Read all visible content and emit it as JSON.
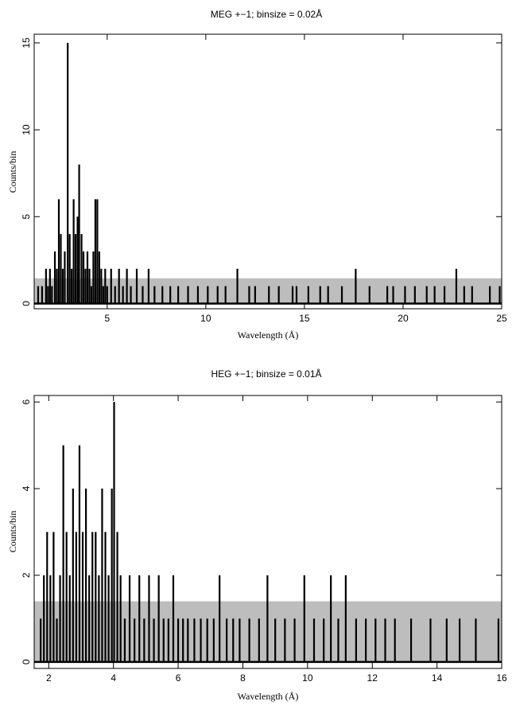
{
  "chart_data": [
    {
      "type": "line",
      "title": "MEG +−1; binsize = 0.02Å",
      "xlabel": "Wavelength (Å)",
      "ylabel": "Counts/bin",
      "xlim": [
        1.3,
        25
      ],
      "ylim": [
        -0.3,
        15.5
      ],
      "xticks": [
        5,
        10,
        15,
        20,
        25
      ],
      "xtick_labels": [
        "5",
        "10",
        "15",
        "20",
        "25"
      ],
      "yticks": [
        0,
        5,
        10,
        15
      ],
      "ytick_labels": [
        "0",
        "5",
        "10",
        "15"
      ],
      "grid": false,
      "series": [
        {
          "kind": "error_band",
          "color": "#bdbdbd",
          "points": [
            [
              1.3,
              1.45
            ],
            [
              7.6,
              1.45
            ],
            [
              7.6,
              1.45
            ],
            [
              25,
              1.45
            ]
          ]
        },
        {
          "kind": "spikes",
          "color": "#000000",
          "points": [
            [
              1.5,
              1
            ],
            [
              1.7,
              1
            ],
            [
              1.9,
              2
            ],
            [
              2.0,
              1
            ],
            [
              2.1,
              2
            ],
            [
              2.2,
              1
            ],
            [
              2.35,
              3
            ],
            [
              2.45,
              2
            ],
            [
              2.55,
              6
            ],
            [
              2.65,
              4
            ],
            [
              2.75,
              2
            ],
            [
              2.85,
              3
            ],
            [
              3.0,
              15
            ],
            [
              3.1,
              4
            ],
            [
              3.2,
              2
            ],
            [
              3.3,
              6
            ],
            [
              3.4,
              4
            ],
            [
              3.5,
              5
            ],
            [
              3.58,
              8
            ],
            [
              3.7,
              4
            ],
            [
              3.8,
              3
            ],
            [
              3.9,
              2
            ],
            [
              4.0,
              3
            ],
            [
              4.1,
              2
            ],
            [
              4.2,
              1
            ],
            [
              4.3,
              3
            ],
            [
              4.4,
              6
            ],
            [
              4.5,
              6
            ],
            [
              4.6,
              3
            ],
            [
              4.7,
              2
            ],
            [
              4.8,
              1
            ],
            [
              4.9,
              2
            ],
            [
              5.0,
              1
            ],
            [
              5.2,
              2
            ],
            [
              5.4,
              1
            ],
            [
              5.6,
              2
            ],
            [
              5.8,
              1
            ],
            [
              6.0,
              2
            ],
            [
              6.2,
              1
            ],
            [
              6.5,
              2
            ],
            [
              6.8,
              1
            ],
            [
              7.1,
              2
            ],
            [
              7.4,
              1
            ],
            [
              7.8,
              1
            ],
            [
              8.2,
              1
            ],
            [
              8.6,
              1
            ],
            [
              9.1,
              1
            ],
            [
              9.6,
              1
            ],
            [
              10.1,
              1
            ],
            [
              10.6,
              1
            ],
            [
              11.0,
              1
            ],
            [
              11.6,
              2
            ],
            [
              12.2,
              1
            ],
            [
              12.5,
              1
            ],
            [
              13.2,
              1
            ],
            [
              13.7,
              1
            ],
            [
              14.4,
              1
            ],
            [
              14.6,
              1
            ],
            [
              15.2,
              1
            ],
            [
              15.8,
              1
            ],
            [
              16.2,
              1
            ],
            [
              16.9,
              1
            ],
            [
              17.6,
              2
            ],
            [
              18.3,
              1
            ],
            [
              19.2,
              1
            ],
            [
              19.5,
              1
            ],
            [
              20.1,
              1
            ],
            [
              20.6,
              1
            ],
            [
              21.2,
              1
            ],
            [
              21.6,
              1
            ],
            [
              22.1,
              1
            ],
            [
              22.7,
              2
            ],
            [
              23.1,
              1
            ],
            [
              23.5,
              1
            ],
            [
              24.4,
              1
            ],
            [
              24.9,
              1
            ]
          ]
        }
      ]
    },
    {
      "type": "line",
      "title": "HEG +−1; binsize = 0.01Å",
      "xlabel": "Wavelength (Å)",
      "ylabel": "Counts/bin",
      "xlim": [
        1.55,
        16
      ],
      "ylim": [
        -0.15,
        6.15
      ],
      "xticks": [
        2,
        4,
        6,
        8,
        10,
        12,
        14,
        16
      ],
      "xtick_labels": [
        "2",
        "4",
        "6",
        "8",
        "10",
        "12",
        "14",
        "16"
      ],
      "yticks": [
        0,
        2,
        4,
        6
      ],
      "ytick_labels": [
        "0",
        "2",
        "4",
        "6"
      ],
      "grid": false,
      "series": [
        {
          "kind": "error_band",
          "color": "#bdbdbd",
          "points": [
            [
              1.55,
              1.4
            ],
            [
              16,
              1.4
            ]
          ]
        },
        {
          "kind": "spikes",
          "color": "#000000",
          "points": [
            [
              1.75,
              1
            ],
            [
              1.85,
              2
            ],
            [
              1.95,
              3
            ],
            [
              2.05,
              2
            ],
            [
              2.15,
              3
            ],
            [
              2.25,
              1
            ],
            [
              2.35,
              2
            ],
            [
              2.45,
              5
            ],
            [
              2.55,
              3
            ],
            [
              2.65,
              2
            ],
            [
              2.75,
              4
            ],
            [
              2.85,
              3
            ],
            [
              2.95,
              5
            ],
            [
              3.05,
              3
            ],
            [
              3.15,
              4
            ],
            [
              3.25,
              2
            ],
            [
              3.35,
              3
            ],
            [
              3.45,
              3
            ],
            [
              3.55,
              2
            ],
            [
              3.65,
              4
            ],
            [
              3.75,
              3
            ],
            [
              3.85,
              2
            ],
            [
              3.95,
              4
            ],
            [
              4.02,
              6
            ],
            [
              4.12,
              3
            ],
            [
              4.22,
              2
            ],
            [
              4.35,
              1
            ],
            [
              4.5,
              2
            ],
            [
              4.65,
              1
            ],
            [
              4.8,
              2
            ],
            [
              4.95,
              1
            ],
            [
              5.1,
              2
            ],
            [
              5.25,
              1
            ],
            [
              5.4,
              2
            ],
            [
              5.55,
              1
            ],
            [
              5.7,
              1
            ],
            [
              5.85,
              2
            ],
            [
              6.0,
              1
            ],
            [
              6.15,
              1
            ],
            [
              6.3,
              1
            ],
            [
              6.5,
              1
            ],
            [
              6.7,
              1
            ],
            [
              6.9,
              1
            ],
            [
              7.1,
              1
            ],
            [
              7.28,
              2
            ],
            [
              7.5,
              1
            ],
            [
              7.7,
              1
            ],
            [
              7.9,
              1
            ],
            [
              8.2,
              1
            ],
            [
              8.5,
              1
            ],
            [
              8.76,
              2
            ],
            [
              9.0,
              1
            ],
            [
              9.3,
              1
            ],
            [
              9.6,
              1
            ],
            [
              9.9,
              2
            ],
            [
              10.2,
              1
            ],
            [
              10.5,
              1
            ],
            [
              10.72,
              2
            ],
            [
              10.95,
              1
            ],
            [
              11.18,
              2
            ],
            [
              11.5,
              1
            ],
            [
              11.8,
              1
            ],
            [
              12.1,
              1
            ],
            [
              12.4,
              1
            ],
            [
              12.7,
              1
            ],
            [
              13.2,
              1
            ],
            [
              13.8,
              1
            ],
            [
              14.3,
              1
            ],
            [
              14.7,
              1
            ],
            [
              15.2,
              1
            ],
            [
              15.9,
              1
            ]
          ]
        }
      ]
    }
  ]
}
